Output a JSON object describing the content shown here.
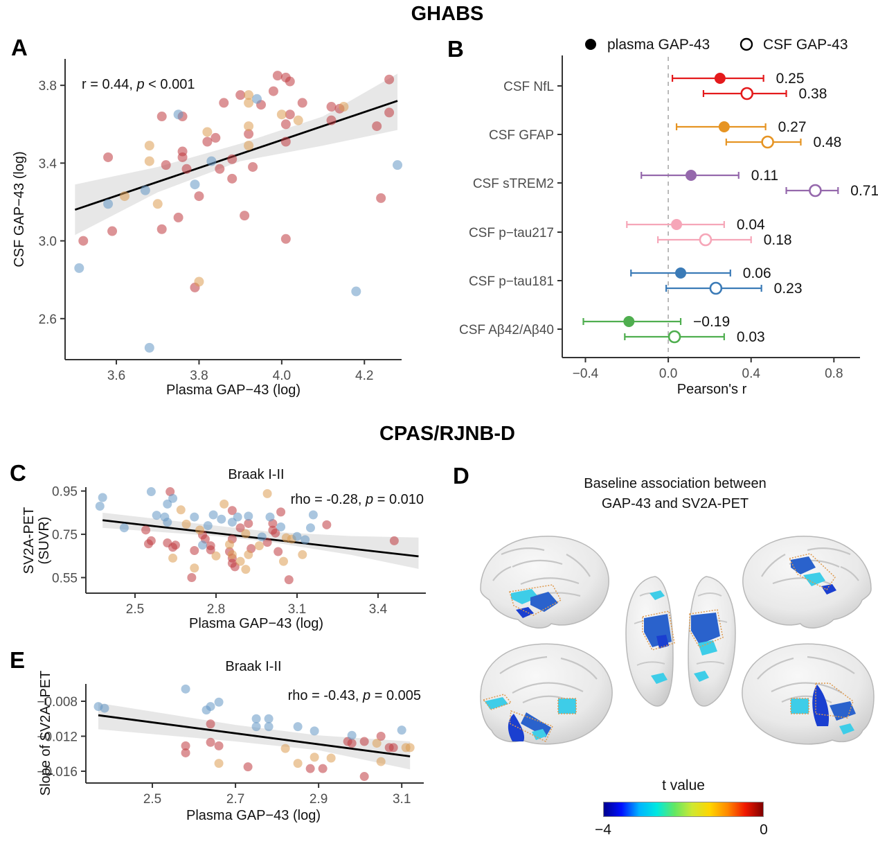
{
  "figure": {
    "title_top": "GHABS",
    "title_middle": "CPAS/RJNB-D"
  },
  "panel_labels": {
    "a": "A",
    "b": "B",
    "c": "C",
    "d": "D",
    "e": "E"
  },
  "colors": {
    "point_red": "#bf3a40",
    "point_tan": "#dc9d52",
    "point_blue": "#6497c5",
    "band": "#cfcfcf",
    "regression_line": "#000000",
    "axis": "#333333",
    "tick_label": "#4d4d4d",
    "zero_line": "#b3b3b3"
  },
  "panel_d": {
    "title_line1": "Baseline association between",
    "title_line2": "GAP-43 and SV2A-PET",
    "colorbar": {
      "title": "t value",
      "min_label": "−4",
      "max_label": "0",
      "stops": [
        "#00008f",
        "#0010ff",
        "#00b4ff",
        "#00e8e0",
        "#63e763",
        "#cfe832",
        "#ffd500",
        "#ff8800",
        "#f01800",
        "#800000"
      ]
    }
  },
  "chart_data": [
    {
      "id": "a",
      "type": "scatter",
      "title": null,
      "xlabel": "Plasma GAP−43 (log)",
      "ylabel": [
        "CSF GAP−43 (log)"
      ],
      "annotation": {
        "pre": "r = 0.44, ",
        "p": "p",
        "post": " < 0.001"
      },
      "xlim": [
        3.476,
        4.29
      ],
      "ylim": [
        2.389,
        3.936
      ],
      "xticks": {
        "v": [
          3.6,
          3.8,
          4.0,
          4.2
        ],
        "l": [
          "3.6",
          "3.8",
          "4.0",
          "4.2"
        ]
      },
      "yticks": {
        "v": [
          2.6,
          3.0,
          3.4,
          3.8
        ],
        "l": [
          "2.6",
          "3.0",
          "3.4",
          "3.8"
        ]
      },
      "line": {
        "x": [
          3.5,
          4.28
        ],
        "y": [
          3.16,
          3.72
        ]
      },
      "band": {
        "x": [
          3.5,
          3.7,
          3.9,
          4.1,
          4.28
        ],
        "upper": [
          3.29,
          3.38,
          3.5,
          3.64,
          3.86
        ],
        "lower": [
          3.03,
          3.25,
          3.41,
          3.49,
          3.57
        ]
      },
      "groups": {
        "red": [
          [
            3.99,
            3.85
          ],
          [
            4.01,
            3.84
          ],
          [
            4.02,
            3.82
          ],
          [
            4.26,
            3.83
          ],
          [
            3.98,
            3.77
          ],
          [
            3.9,
            3.75
          ],
          [
            3.95,
            3.7
          ],
          [
            3.86,
            3.71
          ],
          [
            4.05,
            3.71
          ],
          [
            4.12,
            3.69
          ],
          [
            4.02,
            3.65
          ],
          [
            3.76,
            3.64
          ],
          [
            3.71,
            3.64
          ],
          [
            4.14,
            3.68
          ],
          [
            4.12,
            3.62
          ],
          [
            4.26,
            3.66
          ],
          [
            4.23,
            3.59
          ],
          [
            4.01,
            3.6
          ],
          [
            3.84,
            3.53
          ],
          [
            3.82,
            3.51
          ],
          [
            4.01,
            3.51
          ],
          [
            3.92,
            3.55
          ],
          [
            3.58,
            3.43
          ],
          [
            3.76,
            3.46
          ],
          [
            3.76,
            3.43
          ],
          [
            3.72,
            3.39
          ],
          [
            3.77,
            3.37
          ],
          [
            3.85,
            3.37
          ],
          [
            3.88,
            3.32
          ],
          [
            3.93,
            3.38
          ],
          [
            3.88,
            3.42
          ],
          [
            3.8,
            3.23
          ],
          [
            4.24,
            3.22
          ],
          [
            3.75,
            3.12
          ],
          [
            3.91,
            3.13
          ],
          [
            3.71,
            3.06
          ],
          [
            3.59,
            3.05
          ],
          [
            3.52,
            3.0
          ],
          [
            4.01,
            3.01
          ],
          [
            3.79,
            2.76
          ]
        ],
        "tan": [
          [
            3.92,
            3.75
          ],
          [
            3.92,
            3.71
          ],
          [
            4.0,
            3.65
          ],
          [
            4.04,
            3.62
          ],
          [
            4.15,
            3.69
          ],
          [
            3.92,
            3.59
          ],
          [
            3.82,
            3.56
          ],
          [
            3.68,
            3.49
          ],
          [
            3.92,
            3.49
          ],
          [
            3.68,
            3.41
          ],
          [
            3.7,
            3.19
          ],
          [
            3.62,
            3.23
          ],
          [
            3.8,
            2.79
          ]
        ],
        "blue": [
          [
            3.94,
            3.73
          ],
          [
            3.75,
            3.65
          ],
          [
            3.83,
            3.41
          ],
          [
            4.28,
            3.39
          ],
          [
            3.79,
            3.29
          ],
          [
            3.67,
            3.26
          ],
          [
            3.58,
            3.19
          ],
          [
            3.51,
            2.86
          ],
          [
            4.18,
            2.74
          ],
          [
            3.68,
            2.45
          ]
        ]
      }
    },
    {
      "id": "b",
      "type": "forest",
      "xlabel": "Pearson's r",
      "xlim": [
        -0.512,
        0.926
      ],
      "xticks": {
        "v": [
          -0.4,
          0.0,
          0.4,
          0.8
        ],
        "l": [
          "−0.4",
          "0.0",
          "0.4",
          "0.8"
        ]
      },
      "zero_line": 0,
      "legend": [
        {
          "label": "plasma GAP-43",
          "filled": true
        },
        {
          "label": "CSF GAP-43",
          "filled": false
        }
      ],
      "rows": [
        {
          "label": "CSF NfL",
          "color": "#e41a1c",
          "plasma": {
            "r": 0.25,
            "lo": 0.02,
            "hi": 0.46,
            "label": "0.25"
          },
          "csf": {
            "r": 0.38,
            "lo": 0.17,
            "hi": 0.57,
            "label": "0.38"
          }
        },
        {
          "label": "CSF GFAP",
          "color": "#e69423",
          "plasma": {
            "r": 0.27,
            "lo": 0.04,
            "hi": 0.47,
            "label": "0.27"
          },
          "csf": {
            "r": 0.48,
            "lo": 0.28,
            "hi": 0.64,
            "label": "0.48"
          }
        },
        {
          "label": "CSF sTREM2",
          "color": "#9568ac",
          "plasma": {
            "r": 0.11,
            "lo": -0.13,
            "hi": 0.34,
            "label": "0.11"
          },
          "csf": {
            "r": 0.71,
            "lo": 0.57,
            "hi": 0.82,
            "label": "0.71"
          }
        },
        {
          "label": "CSF p−tau217",
          "color": "#f6a6b8",
          "plasma": {
            "r": 0.04,
            "lo": -0.2,
            "hi": 0.27,
            "label": "0.04"
          },
          "csf": {
            "r": 0.18,
            "lo": -0.05,
            "hi": 0.4,
            "label": "0.18"
          }
        },
        {
          "label": "CSF p−tau181",
          "color": "#3b7bb7",
          "plasma": {
            "r": 0.06,
            "lo": -0.18,
            "hi": 0.3,
            "label": "0.06"
          },
          "csf": {
            "r": 0.23,
            "lo": -0.01,
            "hi": 0.45,
            "label": "0.23"
          }
        },
        {
          "label": "CSF Aβ42/Aβ40",
          "color": "#4fae4f",
          "plasma": {
            "r": -0.19,
            "lo": -0.41,
            "hi": 0.06,
            "label": "−0.19"
          },
          "csf": {
            "r": 0.03,
            "lo": -0.21,
            "hi": 0.27,
            "label": "0.03"
          }
        }
      ]
    },
    {
      "id": "c",
      "type": "scatter",
      "title": "Braak I-II",
      "xlabel": "Plasma GAP−43 (log)",
      "ylabel": [
        "SV2A-PET",
        "(SUVR)"
      ],
      "annotation": {
        "pre": "rho = -0.28, ",
        "p": "p",
        "post": " = 0.010"
      },
      "xlim": [
        2.318,
        3.577
      ],
      "ylim": [
        0.478,
        0.968
      ],
      "xticks": {
        "v": [
          2.5,
          2.8,
          3.1,
          3.4
        ],
        "l": [
          "2.5",
          "2.8",
          "3.1",
          "3.4"
        ]
      },
      "yticks": {
        "v": [
          0.55,
          0.75,
          0.95
        ],
        "l": [
          "0.55",
          "0.75",
          "0.95"
        ]
      },
      "line": {
        "x": [
          2.38,
          3.55
        ],
        "y": [
          0.815,
          0.648
        ]
      },
      "band": {
        "x": [
          2.38,
          2.8,
          3.0,
          3.3,
          3.55
        ],
        "upper": [
          0.85,
          0.79,
          0.762,
          0.742,
          0.735
        ],
        "lower": [
          0.78,
          0.742,
          0.715,
          0.655,
          0.59
        ]
      },
      "groups": {
        "red": [
          [
            2.63,
            0.947
          ],
          [
            2.54,
            0.77
          ],
          [
            2.56,
            0.72
          ],
          [
            2.55,
            0.706
          ],
          [
            2.62,
            0.71
          ],
          [
            2.64,
            0.69
          ],
          [
            2.65,
            0.7
          ],
          [
            2.75,
            0.747
          ],
          [
            2.76,
            0.728
          ],
          [
            2.72,
            0.675
          ],
          [
            2.71,
            0.55
          ],
          [
            2.78,
            0.697
          ],
          [
            2.78,
            0.678
          ],
          [
            2.86,
            0.86
          ],
          [
            2.89,
            0.78
          ],
          [
            2.92,
            0.8
          ],
          [
            2.86,
            0.728
          ],
          [
            2.85,
            0.67
          ],
          [
            2.86,
            0.64
          ],
          [
            2.86,
            0.616
          ],
          [
            2.87,
            0.6
          ],
          [
            2.93,
            0.684
          ],
          [
            2.99,
            0.713
          ],
          [
            3.04,
            0.853
          ],
          [
            3.01,
            0.8
          ],
          [
            3.01,
            0.769
          ],
          [
            3.02,
            0.756
          ],
          [
            3.03,
            0.67
          ],
          [
            3.07,
            0.54
          ],
          [
            3.21,
            0.794
          ],
          [
            3.46,
            0.72
          ]
        ],
        "tan": [
          [
            2.67,
            0.863
          ],
          [
            2.64,
            0.64
          ],
          [
            2.69,
            0.797
          ],
          [
            2.74,
            0.77
          ],
          [
            2.72,
            0.594
          ],
          [
            2.8,
            0.65
          ],
          [
            2.83,
            0.89
          ],
          [
            2.91,
            0.753
          ],
          [
            2.85,
            0.703
          ],
          [
            2.86,
            0.656
          ],
          [
            2.89,
            0.625
          ],
          [
            2.91,
            0.588
          ],
          [
            2.92,
            0.656
          ],
          [
            2.96,
            0.697
          ],
          [
            2.99,
            0.938
          ],
          [
            3.06,
            0.734
          ],
          [
            3.05,
            0.625
          ],
          [
            3.12,
            0.656
          ],
          [
            3.08,
            0.728
          ]
        ],
        "blue": [
          [
            2.38,
            0.92
          ],
          [
            2.37,
            0.88
          ],
          [
            2.56,
            0.947
          ],
          [
            2.64,
            0.916
          ],
          [
            2.62,
            0.89
          ],
          [
            2.58,
            0.838
          ],
          [
            2.61,
            0.83
          ],
          [
            2.62,
            0.806
          ],
          [
            2.46,
            0.78
          ],
          [
            2.72,
            0.83
          ],
          [
            2.77,
            0.79
          ],
          [
            2.79,
            0.84
          ],
          [
            2.75,
            0.7
          ],
          [
            2.82,
            0.82
          ],
          [
            2.88,
            0.83
          ],
          [
            2.86,
            0.806
          ],
          [
            2.92,
            0.834
          ],
          [
            2.97,
            0.738
          ],
          [
            3.0,
            0.83
          ],
          [
            3.04,
            0.784
          ],
          [
            3.1,
            0.74
          ],
          [
            3.13,
            0.725
          ],
          [
            3.15,
            0.78
          ],
          [
            3.16,
            0.84
          ]
        ]
      }
    },
    {
      "id": "e",
      "type": "scatter",
      "title": "Braak I-II",
      "xlabel": "Plasma GAP−43 (log)",
      "ylabel": [
        "Slope of SV2A−PET"
      ],
      "annotation": {
        "pre": "rho = -0.43, ",
        "p": "p",
        "post": " = 0.005"
      },
      "xlim": [
        2.34,
        3.153
      ],
      "ylim": [
        -0.01735,
        -0.00602
      ],
      "xticks": {
        "v": [
          2.5,
          2.7,
          2.9,
          3.1
        ],
        "l": [
          "2.5",
          "2.7",
          "2.9",
          "3.1"
        ]
      },
      "yticks": {
        "v": [
          -0.008,
          -0.012,
          -0.016
        ],
        "l": [
          "−0.008",
          "−0.012",
          "−0.016"
        ]
      },
      "line": {
        "x": [
          2.37,
          3.12
        ],
        "y": [
          -0.0096,
          -0.0143
        ]
      },
      "band": {
        "x": [
          2.37,
          2.7,
          2.9,
          3.12
        ],
        "upper": [
          -0.0082,
          -0.0107,
          -0.0119,
          -0.0126
        ],
        "lower": [
          -0.0112,
          -0.0126,
          -0.0136,
          -0.0158
        ]
      },
      "groups": {
        "red": [
          [
            2.64,
            -0.0106
          ],
          [
            2.64,
            -0.0127
          ],
          [
            2.66,
            -0.0131
          ],
          [
            2.58,
            -0.0131
          ],
          [
            2.58,
            -0.0139
          ],
          [
            2.73,
            -0.0155
          ],
          [
            2.88,
            -0.0157
          ],
          [
            2.91,
            -0.0157
          ],
          [
            2.97,
            -0.0126
          ],
          [
            2.98,
            -0.0128
          ],
          [
            3.01,
            -0.0166
          ],
          [
            3.01,
            -0.0126
          ],
          [
            3.05,
            -0.012
          ],
          [
            3.07,
            -0.0133
          ],
          [
            3.08,
            -0.0133
          ]
        ],
        "tan": [
          [
            2.66,
            -0.0151
          ],
          [
            2.82,
            -0.0134
          ],
          [
            2.85,
            -0.0151
          ],
          [
            2.89,
            -0.0144
          ],
          [
            2.93,
            -0.0145
          ],
          [
            3.04,
            -0.0128
          ],
          [
            3.05,
            -0.0149
          ],
          [
            3.11,
            -0.0133
          ],
          [
            3.12,
            -0.0133
          ]
        ],
        "blue": [
          [
            2.37,
            -0.0086
          ],
          [
            2.385,
            -0.0088
          ],
          [
            2.58,
            -0.0066
          ],
          [
            2.63,
            -0.009
          ],
          [
            2.64,
            -0.0086
          ],
          [
            2.66,
            -0.0081
          ],
          [
            2.75,
            -0.01
          ],
          [
            2.78,
            -0.01
          ],
          [
            2.75,
            -0.0109
          ],
          [
            2.78,
            -0.0109
          ],
          [
            2.85,
            -0.0109
          ],
          [
            2.89,
            -0.0114
          ],
          [
            2.98,
            -0.0119
          ],
          [
            3.1,
            -0.0113
          ]
        ]
      }
    }
  ]
}
